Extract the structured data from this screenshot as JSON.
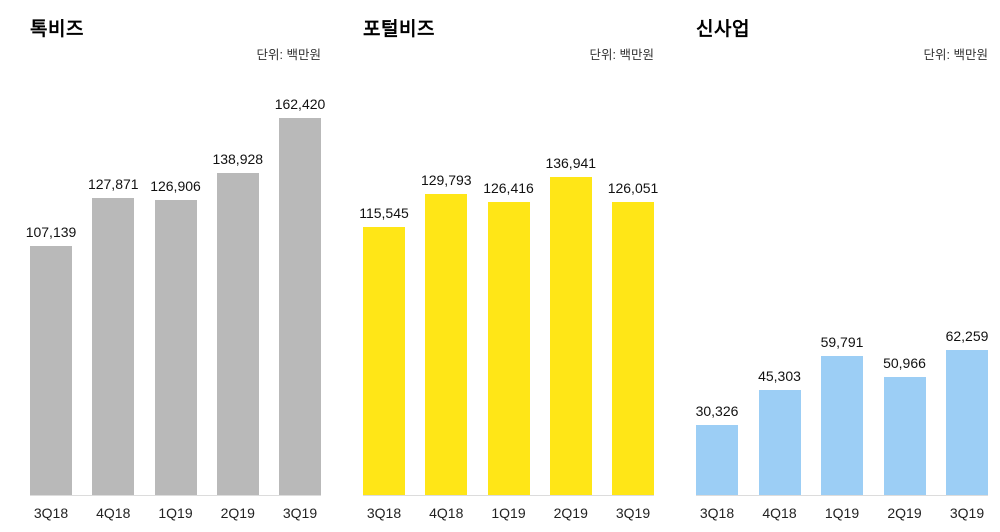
{
  "page": {
    "background": "#ffffff"
  },
  "chart_data": [
    {
      "type": "bar",
      "title": "톡비즈",
      "unit_label": "단위: 백만원",
      "categories": [
        "3Q18",
        "4Q18",
        "1Q19",
        "2Q19",
        "3Q19"
      ],
      "values": [
        107139,
        127871,
        126906,
        138928,
        162420
      ],
      "values_formatted": [
        "107,139",
        "127,871",
        "126,906",
        "138,928",
        "162,420"
      ],
      "bar_color": "#b9b9b9",
      "xlabel": "",
      "ylabel": "",
      "ylim": [
        0,
        170000
      ],
      "grid": false,
      "legend": false,
      "data_labels": true
    },
    {
      "type": "bar",
      "title": "포털비즈",
      "unit_label": "단위: 백만원",
      "categories": [
        "3Q18",
        "4Q18",
        "1Q19",
        "2Q19",
        "3Q19"
      ],
      "values": [
        115545,
        129793,
        126416,
        136941,
        126051
      ],
      "values_formatted": [
        "115,545",
        "129,793",
        "126,416",
        "136,941",
        "126,051"
      ],
      "bar_color": "#ffe617",
      "xlabel": "",
      "ylabel": "",
      "ylim": [
        0,
        170000
      ],
      "grid": false,
      "legend": false,
      "data_labels": true
    },
    {
      "type": "bar",
      "title": "신사업",
      "unit_label": "단위: 백만원",
      "categories": [
        "3Q18",
        "4Q18",
        "1Q19",
        "2Q19",
        "3Q19"
      ],
      "values": [
        30326,
        45303,
        59791,
        50966,
        62259
      ],
      "values_formatted": [
        "30,326",
        "45,303",
        "59,791",
        "50,966",
        "62,259"
      ],
      "bar_color": "#9ccef5",
      "xlabel": "",
      "ylabel": "",
      "ylim": [
        0,
        170000
      ],
      "grid": false,
      "legend": false,
      "data_labels": true
    }
  ]
}
